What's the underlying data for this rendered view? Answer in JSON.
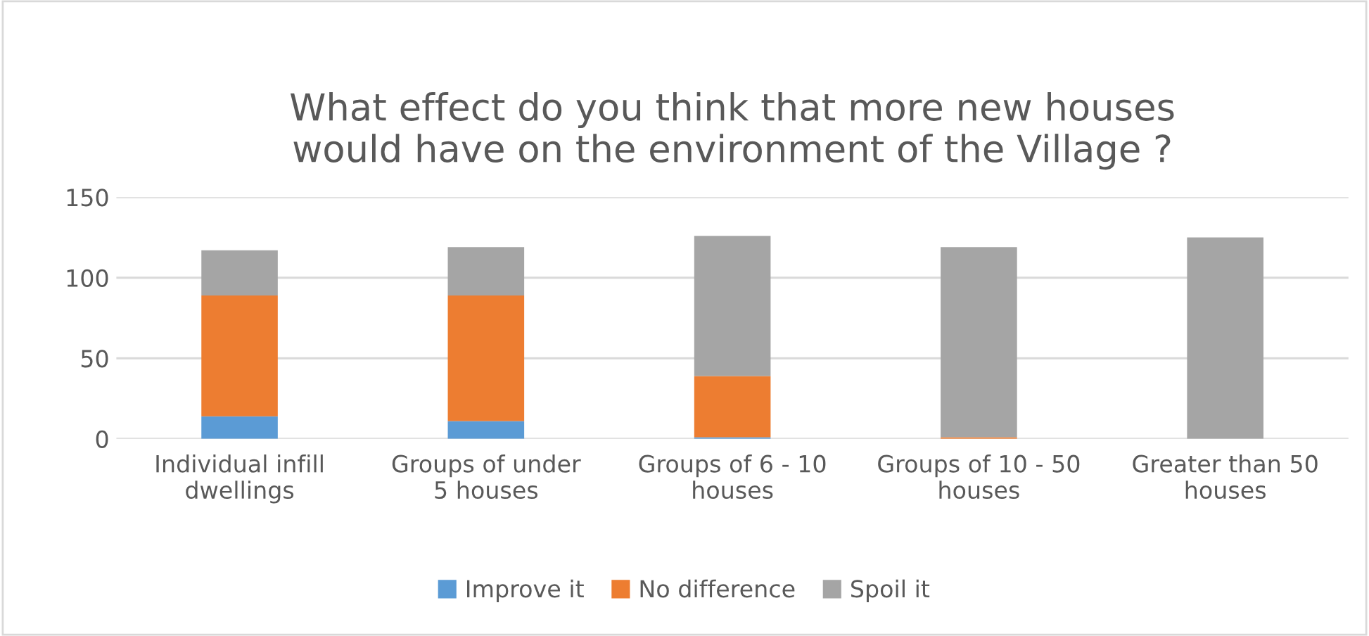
{
  "chart_data": {
    "type": "bar",
    "stacked": true,
    "title": "What effect do you think that more new houses\nwould have on the environment of the Village ?",
    "categories": [
      "Individual infill\ndwellings",
      "Groups of under\n5 houses",
      "Groups of 6 - 10\nhouses",
      "Groups of 10 - 50\nhouses",
      "Greater than 50\nhouses"
    ],
    "series": [
      {
        "name": "Improve it",
        "color": "#5b9bd5",
        "values": [
          14,
          11,
          1,
          0,
          0
        ]
      },
      {
        "name": "No difference",
        "color": "#ed7d31",
        "values": [
          75,
          78,
          38,
          1,
          0
        ]
      },
      {
        "name": "Spoil it",
        "color": "#a5a5a5",
        "values": [
          28,
          30,
          87,
          118,
          125
        ]
      }
    ],
    "ylim": [
      0,
      150
    ],
    "yticks": [
      0,
      50,
      100,
      150
    ],
    "grid": "y",
    "legend": "bottom"
  }
}
